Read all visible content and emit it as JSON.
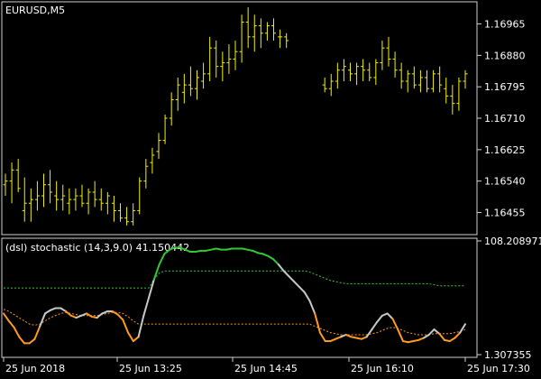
{
  "chart_data": [
    {
      "type": "ohlc",
      "symbol_label": "EURUSD,M5",
      "price_ticks": [
        "1.16965",
        "1.16880",
        "1.16795",
        "1.16710",
        "1.16625",
        "1.16540",
        "1.16455"
      ],
      "ylim": [
        1.164,
        1.1702
      ],
      "bar_color": "#f2f200",
      "bars": [
        [
          1.1653,
          1.1656,
          1.165,
          1.1654
        ],
        [
          1.1654,
          1.1659,
          1.1648,
          1.1657
        ],
        [
          1.1657,
          1.166,
          1.1651,
          1.1652
        ],
        [
          1.1646,
          1.1655,
          1.1643,
          1.1648
        ],
        [
          1.1648,
          1.1652,
          1.1643,
          1.1649
        ],
        [
          1.1649,
          1.1654,
          1.1646,
          1.165
        ],
        [
          1.165,
          1.1656,
          1.1647,
          1.1653
        ],
        [
          1.1653,
          1.1657,
          1.1648,
          1.1651
        ],
        [
          1.165,
          1.1654,
          1.1646,
          1.1649
        ],
        [
          1.1649,
          1.1653,
          1.1646,
          1.165
        ],
        [
          1.1648,
          1.1652,
          1.1645,
          1.1649
        ],
        [
          1.1649,
          1.1652,
          1.1646,
          1.165
        ],
        [
          1.165,
          1.1653,
          1.1647,
          1.1648
        ],
        [
          1.1648,
          1.1652,
          1.1645,
          1.1651
        ],
        [
          1.1651,
          1.1654,
          1.1647,
          1.1649
        ],
        [
          1.1649,
          1.1652,
          1.1646,
          1.1648
        ],
        [
          1.1648,
          1.1651,
          1.1645,
          1.165
        ],
        [
          1.1648,
          1.165,
          1.1643,
          1.1646
        ],
        [
          1.1646,
          1.1648,
          1.1643,
          1.1644
        ],
        [
          1.1644,
          1.1647,
          1.1642,
          1.1643
        ],
        [
          1.1643,
          1.1648,
          1.1642,
          1.1646
        ],
        [
          1.1646,
          1.1655,
          1.1645,
          1.1654
        ],
        [
          1.1654,
          1.166,
          1.1652,
          1.1658
        ],
        [
          1.1659,
          1.1663,
          1.1656,
          1.1661
        ],
        [
          1.1662,
          1.1667,
          1.166,
          1.1665
        ],
        [
          1.1665,
          1.1672,
          1.1664,
          1.1671
        ],
        [
          1.1671,
          1.1678,
          1.1669,
          1.1676
        ],
        [
          1.1676,
          1.1682,
          1.1673,
          1.168
        ],
        [
          1.1678,
          1.1683,
          1.1675,
          1.168
        ],
        [
          1.168,
          1.1685,
          1.1677,
          1.1679
        ],
        [
          1.1679,
          1.1684,
          1.1676,
          1.1682
        ],
        [
          1.1681,
          1.1686,
          1.1679,
          1.1683
        ],
        [
          1.1683,
          1.1693,
          1.1681,
          1.169
        ],
        [
          1.169,
          1.1692,
          1.1682,
          1.1685
        ],
        [
          1.1685,
          1.1689,
          1.1681,
          1.1686
        ],
        [
          1.1686,
          1.1691,
          1.1683,
          1.1687
        ],
        [
          1.1687,
          1.1692,
          1.1684,
          1.1689
        ],
        [
          1.1689,
          1.1699,
          1.1686,
          1.1697
        ],
        [
          1.1697,
          1.1701,
          1.169,
          1.1693
        ],
        [
          1.1693,
          1.1699,
          1.1689,
          1.1696
        ],
        [
          1.1696,
          1.1698,
          1.169,
          1.1694
        ],
        [
          1.1694,
          1.1697,
          1.1692,
          1.1696
        ],
        [
          1.1696,
          1.1698,
          1.1692,
          1.1694
        ],
        [
          1.1693,
          1.1695,
          1.169,
          1.1693
        ],
        [
          1.1693,
          1.1694,
          1.169,
          1.1692
        ],
        null,
        null,
        null,
        null,
        null,
        [
          1.168,
          1.1682,
          1.1678,
          1.1679
        ],
        [
          1.1679,
          1.1683,
          1.1677,
          1.1681
        ],
        [
          1.1681,
          1.1686,
          1.1679,
          1.1684
        ],
        [
          1.1684,
          1.1687,
          1.1681,
          1.1685
        ],
        [
          1.1684,
          1.1686,
          1.1681,
          1.1683
        ],
        [
          1.1683,
          1.1686,
          1.168,
          1.1685
        ],
        [
          1.1685,
          1.1687,
          1.1681,
          1.1684
        ],
        [
          1.1684,
          1.1686,
          1.1681,
          1.1682
        ],
        [
          1.1682,
          1.1687,
          1.168,
          1.1686
        ],
        [
          1.1686,
          1.1692,
          1.1684,
          1.169
        ],
        [
          1.169,
          1.1693,
          1.1685,
          1.1687
        ],
        [
          1.1687,
          1.1689,
          1.1682,
          1.1684
        ],
        [
          1.1684,
          1.1686,
          1.1679,
          1.1681
        ],
        [
          1.1681,
          1.1684,
          1.1678,
          1.1683
        ],
        [
          1.1683,
          1.1685,
          1.1679,
          1.168
        ],
        [
          1.168,
          1.1684,
          1.1678,
          1.1682
        ],
        [
          1.1682,
          1.1684,
          1.1678,
          1.1679
        ],
        [
          1.1679,
          1.1684,
          1.1678,
          1.1683
        ],
        [
          1.1683,
          1.1685,
          1.1678,
          1.168
        ],
        [
          1.1679,
          1.1682,
          1.1675,
          1.1677
        ],
        [
          1.1677,
          1.168,
          1.1672,
          1.1675
        ],
        [
          1.1675,
          1.1682,
          1.1673,
          1.1681
        ],
        [
          1.1681,
          1.1684,
          1.1679,
          1.1683
        ]
      ]
    },
    {
      "type": "line",
      "indicator_label": "(dsl) stochastic (14,3,9.0) 41.150442",
      "value_ticks": [
        "108.208971",
        "1.307355"
      ],
      "ylim": [
        1.307355,
        108.208971
      ],
      "main_line_colors": {
        "up": "#32c832",
        "down": "#ff9a1e",
        "neutral": "#c8c8c8"
      },
      "signal_color": "#ff9a1e",
      "level_color": "#32c832",
      "series": [
        {
          "values": [
            40,
            33,
            27,
            18,
            12,
            12,
            16,
            28,
            40,
            43,
            45,
            45,
            42,
            38,
            36,
            38,
            40,
            37,
            36,
            40,
            42,
            42,
            39,
            34,
            22,
            14,
            18,
            38,
            55,
            72,
            86,
            96,
            100,
            102,
            102,
            100,
            98,
            98,
            99,
            99,
            100,
            101,
            100,
            100,
            101,
            101,
            101,
            100,
            99,
            97,
            96,
            94,
            91,
            86,
            80,
            75,
            70,
            65,
            60,
            52,
            40,
            22,
            14,
            14,
            16,
            18,
            20,
            18,
            17,
            16,
            18,
            25,
            32,
            38,
            40,
            35,
            25,
            14,
            13,
            14,
            15,
            17,
            20,
            25,
            21,
            15,
            14,
            17,
            22,
            30
          ]
        },
        {
          "values": [
            44,
            42,
            39,
            36,
            33,
            30,
            29,
            30,
            33,
            36,
            38,
            40,
            41,
            40,
            39,
            38,
            38,
            38,
            38,
            39,
            40,
            41,
            41,
            40,
            37,
            33,
            30,
            30,
            30,
            30,
            30,
            30,
            30,
            30,
            30,
            30,
            30,
            30,
            30,
            30,
            30,
            30,
            30,
            30,
            30,
            30,
            30,
            30,
            30,
            30,
            30,
            30,
            30,
            30,
            30,
            30,
            30,
            30,
            30,
            30,
            28,
            26,
            24,
            22,
            21,
            20,
            20,
            20,
            20,
            20,
            20,
            21,
            22,
            24,
            26,
            27,
            26,
            24,
            22,
            21,
            20,
            20,
            20,
            21,
            21,
            21,
            21,
            22,
            23,
            25
          ]
        },
        {
          "values": [
            64,
            64,
            64,
            64,
            64,
            64,
            64,
            64,
            64,
            64,
            64,
            64,
            64,
            64,
            64,
            64,
            64,
            64,
            64,
            64,
            64,
            64,
            64,
            64,
            64,
            64,
            64,
            64,
            64,
            72,
            78,
            80,
            80,
            80,
            80,
            80,
            80,
            80,
            80,
            80,
            80,
            80,
            80,
            80,
            80,
            80,
            80,
            80,
            80,
            80,
            80,
            80,
            80,
            80,
            80,
            80,
            80,
            80,
            80,
            79,
            77,
            75,
            73,
            71,
            70,
            69,
            68,
            68,
            68,
            68,
            68,
            68,
            68,
            68,
            68,
            68,
            68,
            68,
            68,
            68,
            68,
            68,
            68,
            67,
            66,
            66,
            66,
            66,
            66,
            66
          ]
        }
      ]
    }
  ],
  "time_axis": {
    "labels": [
      "25 Jun 2018",
      "25 Jun 13:25",
      "25 Jun 14:45",
      "25 Jun 16:10",
      "25 Jun 17:30"
    ]
  }
}
